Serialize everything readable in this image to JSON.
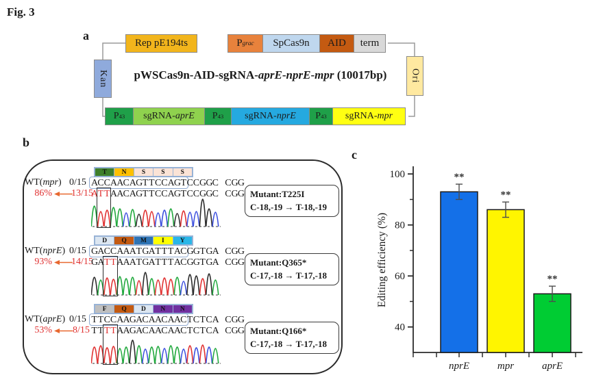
{
  "figure": {
    "label": "Fig. 3"
  },
  "panels": {
    "a": "a",
    "b": "b",
    "c": "c"
  },
  "plasmid": {
    "title_segments": [
      {
        "t": "pWSCas9n-AID-sgRNA-"
      },
      {
        "t": "aprE",
        "style": "i"
      },
      {
        "t": "-"
      },
      {
        "t": "nprE",
        "style": "i"
      },
      {
        "t": "-"
      },
      {
        "t": "mpr",
        "style": "i"
      },
      {
        "t": " (10017bp)"
      }
    ],
    "rep_label": "Rep pE194ts",
    "rep_color": "#F2B51C",
    "cassette": [
      {
        "segments": [
          {
            "t": "P"
          },
          {
            "t": "grac",
            "style": "isub"
          }
        ],
        "color": "#E8823C"
      },
      {
        "segments": [
          {
            "t": "SpCas9n"
          }
        ],
        "color": "#BFD7EE"
      },
      {
        "segments": [
          {
            "t": "AID"
          }
        ],
        "color": "#C45A11"
      },
      {
        "segments": [
          {
            "t": "term"
          }
        ],
        "color": "#D9D9D9"
      }
    ],
    "kan_label": "Kan",
    "kan_color": "#8FAADC",
    "ori_label": "Ori",
    "ori_color": "#FFE9A0",
    "bottom_row": [
      {
        "segments": [
          {
            "t": "P"
          },
          {
            "t": "43",
            "style": "sub"
          }
        ],
        "color": "#1FA049"
      },
      {
        "segments": [
          {
            "t": "sgRNA-"
          },
          {
            "t": "aprE",
            "style": "i"
          }
        ],
        "color": "#8FD24E"
      },
      {
        "segments": [
          {
            "t": "P"
          },
          {
            "t": "43",
            "style": "sub"
          }
        ],
        "color": "#1FA049"
      },
      {
        "segments": [
          {
            "t": "sgRNA-"
          },
          {
            "t": "nprE",
            "style": "i"
          }
        ],
        "color": "#25A9E0"
      },
      {
        "segments": [
          {
            "t": "P"
          },
          {
            "t": "43",
            "style": "sub"
          }
        ],
        "color": "#1FA049"
      },
      {
        "segments": [
          {
            "t": "sgRNA-"
          },
          {
            "t": "mpr",
            "style": "i"
          }
        ],
        "color": "#FFFF12"
      }
    ]
  },
  "editing": {
    "blocks": [
      {
        "gene": "mpr",
        "wt_label_segments": [
          {
            "t": "WT("
          },
          {
            "t": "mpr",
            "style": "i"
          },
          {
            "t": ")"
          }
        ],
        "wt_count": "0/15",
        "aa_residues": [
          {
            "letter": "T",
            "color": "#3E7F2B"
          },
          {
            "letter": "N",
            "color": "#FFC000"
          },
          {
            "letter": "S",
            "color": "#FBE3D6"
          },
          {
            "letter": "S",
            "color": "#FBE3D6"
          },
          {
            "letter": "S",
            "color": "#FBE3D6"
          }
        ],
        "wt_protospacer": "ACCAACAGTTCCAGT",
        "wt_rest": "CCGGC CGG",
        "efficiency": "86%",
        "mut_count": "13/15",
        "mut_seq_segments": [
          {
            "t": "ATT",
            "style": "red"
          },
          {
            "t": "AACAGTTCCAGTCCGGC CGG"
          }
        ],
        "chromatogram_seq": "ATTAACAGTTCCAGTCCGGC",
        "mut_box_char_start": 1,
        "mut_box_char_len": 2,
        "mutant_title": "Mutant:T225I",
        "mutant_from": "C-18,-19",
        "mutant_arrow": "→",
        "mutant_to": "T-18,-19"
      },
      {
        "gene": "nprE",
        "wt_label_segments": [
          {
            "t": "WT("
          },
          {
            "t": "nprE",
            "style": "i"
          },
          {
            "t": ")"
          }
        ],
        "wt_count": "0/15",
        "aa_residues": [
          {
            "letter": "D",
            "color": "#DCE6F1"
          },
          {
            "letter": "Q",
            "color": "#C45A11"
          },
          {
            "letter": "M",
            "color": "#2E74B5"
          },
          {
            "letter": "I",
            "color": "#FFFF00"
          },
          {
            "letter": "Y",
            "color": "#29B6E8"
          }
        ],
        "wt_protospacer": "GACCAAATGATTTAC",
        "wt_rest": "GGTGA CGG",
        "efficiency": "93%",
        "mut_count": "14/15",
        "mut_seq_segments": [
          {
            "t": "GA"
          },
          {
            "t": "TT",
            "style": "red"
          },
          {
            "t": "AAATGATTTACGGTGA CGG"
          }
        ],
        "chromatogram_seq": "GATTAAATGATTTACGGTGA",
        "mut_box_char_start": 2,
        "mut_box_char_len": 2,
        "mutant_title": "Mutant:Q365*",
        "mutant_from": "C-17,-18",
        "mutant_arrow": "→",
        "mutant_to": "T-17,-18"
      },
      {
        "gene": "aprE",
        "wt_label_segments": [
          {
            "t": "WT("
          },
          {
            "t": "aprE",
            "style": "i"
          },
          {
            "t": ")"
          }
        ],
        "wt_count": "0/15",
        "aa_residues": [
          {
            "letter": "F",
            "color": "#BFBFBF"
          },
          {
            "letter": "Q",
            "color": "#C45A11"
          },
          {
            "letter": "D",
            "color": "#DCE6F1"
          },
          {
            "letter": "N",
            "color": "#7030A0"
          },
          {
            "letter": "N",
            "color": "#7030A0"
          }
        ],
        "wt_protospacer": "TTCCAAGACAACAAC",
        "wt_rest": "TCTCA CGG",
        "efficiency": "53%",
        "mut_count": "8/15",
        "mut_seq_segments": [
          {
            "t": "TT"
          },
          {
            "t": "TT",
            "style": "red"
          },
          {
            "t": "AAGACAACAACTCTCA CGG"
          }
        ],
        "chromatogram_seq": "TTTTAAGACAACAACTCTCA",
        "mut_box_char_start": 2,
        "mut_box_char_len": 2,
        "mutant_title": "Mutant:Q166*",
        "mutant_from": "C-17,-18",
        "mutant_arrow": "→",
        "mutant_to": "T-17,-18"
      }
    ],
    "base_colors": {
      "A": "#1fa83c",
      "C": "#3b4ede",
      "G": "#2b2b2b",
      "T": "#e03131"
    }
  },
  "chart_data": {
    "type": "bar",
    "title": "",
    "xlabel": "",
    "ylabel": "Editing efficiency (%)",
    "categories": [
      "nprE",
      "mpr",
      "aprE"
    ],
    "values": [
      93,
      86,
      53
    ],
    "errors": [
      3,
      3,
      3
    ],
    "bar_colors": [
      "#1470E8",
      "#FFF500",
      "#00CC33"
    ],
    "significance": [
      "**",
      "**",
      "**"
    ],
    "ylim": [
      30,
      103
    ],
    "yticks": [
      40,
      60,
      80,
      100
    ],
    "yticks_minor": [
      50,
      70,
      90
    ],
    "grid": false,
    "legend": false
  }
}
